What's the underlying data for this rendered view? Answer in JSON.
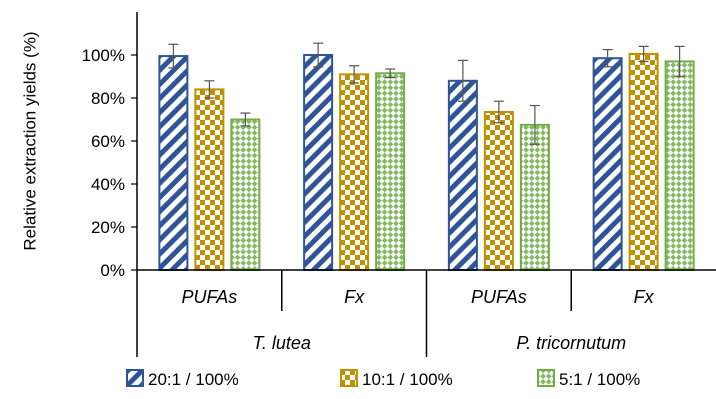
{
  "chart_data": {
    "type": "bar",
    "ylabel": "Relative extraction yields (%)",
    "xlabel": "",
    "ylim": [
      0,
      120
    ],
    "yticks": [
      0,
      20,
      40,
      60,
      80,
      100
    ],
    "ytick_labels": [
      "0%",
      "20%",
      "40%",
      "60%",
      "80%",
      "100%"
    ],
    "grid": false,
    "legend_position": "bottom",
    "groups": [
      {
        "label": "T. lutea",
        "categories": [
          "PUFAs",
          "Fx"
        ]
      },
      {
        "label": "P. tricornutum",
        "categories": [
          "PUFAs",
          "Fx"
        ]
      }
    ],
    "categories": [
      "PUFAs",
      "Fx",
      "PUFAs",
      "Fx"
    ],
    "series": [
      {
        "name": "20:1 / 100%",
        "values": [
          99.5,
          100,
          88,
          98.5
        ],
        "errors": [
          5.5,
          5.5,
          9.5,
          4
        ],
        "color": "#2F5597",
        "pattern": "diagonal-stripes"
      },
      {
        "name": "10:1 / 100%",
        "values": [
          84,
          91,
          73.5,
          100.5
        ],
        "errors": [
          4,
          4,
          5,
          3.5
        ],
        "color": "#BF9000",
        "pattern": "checker"
      },
      {
        "name": "5:1 / 100%",
        "values": [
          70,
          91.5,
          67.5,
          97
        ],
        "errors": [
          3,
          2,
          9,
          7
        ],
        "color": "#70AD47",
        "pattern": "diamond-checker"
      }
    ]
  }
}
